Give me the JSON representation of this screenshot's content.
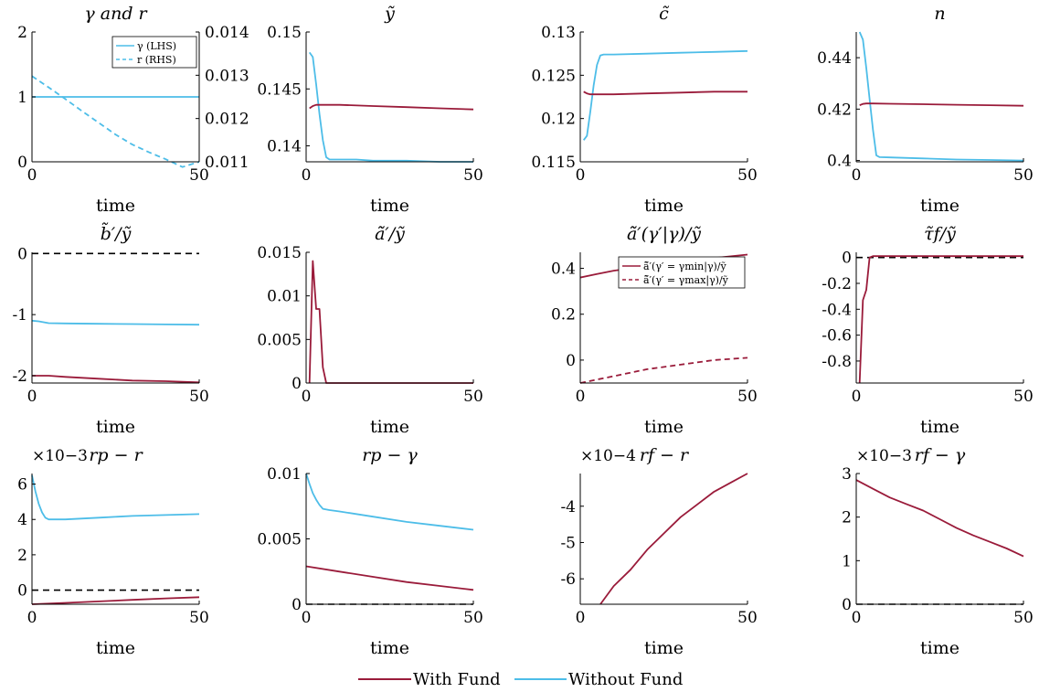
{
  "colors": {
    "with_fund": "#9a1b3a",
    "without_fund": "#4dbde8",
    "zero_line": "#000000"
  },
  "legend": {
    "placement": "bottom-center",
    "with_fund": "With Fund",
    "without_fund": "Without Fund"
  },
  "chart_data": [
    {
      "type": "line",
      "title": "γ and r",
      "xlabel": "time",
      "xlim": [
        0,
        50
      ],
      "xticks": [
        "0",
        "50"
      ],
      "ylim": [
        0,
        2
      ],
      "yticks": [
        "0",
        "1",
        "2"
      ],
      "ylim_right": [
        0.011,
        0.014
      ],
      "yticks_right": [
        "0.011",
        "0.012",
        "0.013",
        "0.014"
      ],
      "legend_placement": "top-right",
      "legend_entries": [
        "γ (LHS)",
        "r (RHS)"
      ],
      "series": [
        {
          "name": "γ (LHS)",
          "color": "without_fund",
          "dash": "solid",
          "axis": "left",
          "x": [
            0,
            50
          ],
          "y": [
            1,
            1
          ]
        },
        {
          "name": "r (RHS)",
          "color": "without_fund",
          "dash": "dashed",
          "axis": "right",
          "x": [
            0,
            5,
            10,
            15,
            20,
            25,
            30,
            35,
            40,
            45,
            50
          ],
          "y": [
            0.01298,
            0.01272,
            0.01245,
            0.01217,
            0.0119,
            0.01163,
            0.0114,
            0.01122,
            0.01106,
            0.01088,
            0.011
          ]
        }
      ]
    },
    {
      "type": "line",
      "title": "ỹ",
      "xlabel": "time",
      "xlim": [
        0,
        50
      ],
      "xticks": [
        "0",
        "50"
      ],
      "ylim": [
        0.1386,
        0.15
      ],
      "yticks": [
        "0.14",
        "0.145",
        "0.15"
      ],
      "series": [
        {
          "key": "without_fund",
          "color": "without_fund",
          "x": [
            1,
            2,
            3,
            4,
            5,
            6,
            7,
            10,
            15,
            20,
            30,
            40,
            50
          ],
          "y": [
            0.1482,
            0.1478,
            0.1454,
            0.1428,
            0.1405,
            0.139,
            0.1388,
            0.1388,
            0.1388,
            0.1387,
            0.1387,
            0.1386,
            0.1386
          ]
        },
        {
          "key": "with_fund",
          "color": "with_fund",
          "x": [
            1,
            2,
            3,
            5,
            10,
            20,
            30,
            40,
            50
          ],
          "y": [
            0.1433,
            0.1435,
            0.1436,
            0.1436,
            0.1436,
            0.1435,
            0.1434,
            0.1433,
            0.1432
          ]
        }
      ]
    },
    {
      "type": "line",
      "title": "c̃",
      "xlabel": "time",
      "xlim": [
        0,
        50
      ],
      "xticks": [
        "0",
        "50"
      ],
      "ylim": [
        0.115,
        0.13
      ],
      "yticks": [
        "0.115",
        "0.12",
        "0.125",
        "0.13"
      ],
      "series": [
        {
          "key": "without_fund",
          "color": "without_fund",
          "x": [
            1,
            2,
            3,
            4,
            5,
            6,
            7,
            10,
            20,
            30,
            40,
            50
          ],
          "y": [
            0.1175,
            0.118,
            0.1208,
            0.1238,
            0.1262,
            0.1273,
            0.1274,
            0.1274,
            0.1275,
            0.1276,
            0.1277,
            0.1278
          ]
        },
        {
          "key": "with_fund",
          "color": "with_fund",
          "x": [
            1,
            2,
            3,
            5,
            10,
            20,
            30,
            40,
            50
          ],
          "y": [
            0.1231,
            0.1229,
            0.1228,
            0.1228,
            0.1228,
            0.1229,
            0.123,
            0.1231,
            0.1231
          ]
        }
      ]
    },
    {
      "type": "line",
      "title": "n",
      "xlabel": "time",
      "xlim": [
        0,
        50
      ],
      "xticks": [
        "0",
        "50"
      ],
      "ylim": [
        0.3995,
        0.45
      ],
      "yticks": [
        "0.4",
        "0.42",
        "0.44"
      ],
      "series": [
        {
          "key": "without_fund",
          "color": "without_fund",
          "x": [
            1,
            2,
            3,
            4,
            5,
            6,
            7,
            10,
            20,
            30,
            40,
            50
          ],
          "y": [
            0.45,
            0.447,
            0.436,
            0.424,
            0.412,
            0.402,
            0.4013,
            0.4012,
            0.4008,
            0.4004,
            0.4002,
            0.4
          ]
        },
        {
          "key": "with_fund",
          "color": "with_fund",
          "x": [
            1,
            2,
            3,
            5,
            10,
            20,
            30,
            40,
            50
          ],
          "y": [
            0.4215,
            0.422,
            0.4222,
            0.4222,
            0.4221,
            0.4219,
            0.4217,
            0.4215,
            0.4213
          ]
        }
      ]
    },
    {
      "type": "line",
      "title": "b̃′/ỹ",
      "xlabel": "time",
      "xlim": [
        0,
        50
      ],
      "xticks": [
        "0",
        "50"
      ],
      "ylim": [
        -2.12,
        0.02
      ],
      "yticks": [
        "-2",
        "-1",
        "0"
      ],
      "zero_line": true,
      "series": [
        {
          "key": "without_fund",
          "color": "without_fund",
          "x": [
            0,
            2,
            5,
            10,
            20,
            30,
            40,
            50
          ],
          "y": [
            -1.1,
            -1.11,
            -1.14,
            -1.145,
            -1.15,
            -1.155,
            -1.16,
            -1.165
          ]
        },
        {
          "key": "with_fund",
          "color": "with_fund",
          "x": [
            0,
            5,
            10,
            20,
            30,
            40,
            50
          ],
          "y": [
            -2.0,
            -2.0,
            -2.02,
            -2.05,
            -2.08,
            -2.09,
            -2.11
          ]
        }
      ]
    },
    {
      "type": "line",
      "title": "ã̃′/ỹ",
      "xlabel": "time",
      "xlim": [
        0,
        50
      ],
      "xticks": [
        "0",
        "50"
      ],
      "ylim": [
        0,
        0.015
      ],
      "yticks": [
        "0",
        "0.005",
        "0.01",
        "0.015"
      ],
      "series": [
        {
          "key": "with_fund",
          "color": "with_fund",
          "x": [
            1,
            2,
            3,
            4,
            5,
            6,
            7,
            10,
            20,
            30,
            40,
            50
          ],
          "y": [
            0,
            0.014,
            0.0085,
            0.0085,
            0.0018,
            0,
            0,
            0,
            0,
            0,
            0,
            0
          ]
        }
      ]
    },
    {
      "type": "line",
      "title": "ã̃′(γ′|γ)/ỹ",
      "xlabel": "time",
      "xlim": [
        0,
        50
      ],
      "xticks": [
        "0",
        "50"
      ],
      "ylim": [
        -0.1,
        0.47
      ],
      "yticks": [
        "0",
        "0.2",
        "0.4"
      ],
      "legend_placement": "top-right",
      "legend_entries": [
        "ã̃′(γ′ = γmin|γ)/ỹ",
        "ã̃′(γ′ = γmax|γ)/ỹ"
      ],
      "series": [
        {
          "name": "ã̃′(γ′ = γmin|γ)/ỹ",
          "color": "with_fund",
          "dash": "solid",
          "x": [
            0,
            5,
            10,
            20,
            30,
            40,
            50
          ],
          "y": [
            0.36,
            0.375,
            0.39,
            0.41,
            0.43,
            0.445,
            0.46
          ]
        },
        {
          "name": "ã̃′(γ′ = γmax|γ)/ỹ",
          "color": "with_fund",
          "dash": "dashed",
          "x": [
            0,
            5,
            10,
            20,
            30,
            40,
            50
          ],
          "y": [
            -0.1,
            -0.085,
            -0.07,
            -0.04,
            -0.02,
            0.0,
            0.01
          ]
        }
      ]
    },
    {
      "type": "line",
      "title": "τ̃f/ỹ",
      "xlabel": "time",
      "xlim": [
        0,
        50
      ],
      "xticks": [
        "0",
        "50"
      ],
      "ylim": [
        -0.97,
        0.04
      ],
      "yticks": [
        "-0.8",
        "-0.6",
        "-0.4",
        "-0.2",
        "0"
      ],
      "zero_line": true,
      "series": [
        {
          "key": "with_fund",
          "color": "with_fund",
          "x": [
            1,
            2,
            3,
            4,
            5,
            10,
            20,
            30,
            40,
            50
          ],
          "y": [
            -0.97,
            -0.33,
            -0.25,
            0.0,
            0.01,
            0.01,
            0.01,
            0.01,
            0.01,
            0.01
          ]
        }
      ]
    },
    {
      "type": "line",
      "title": "rp − r",
      "xlabel": "time",
      "y_multiplier": "×10−3",
      "xlim": [
        0,
        50
      ],
      "xticks": [
        "0",
        "50"
      ],
      "ylim": [
        -0.8,
        6.6
      ],
      "yticks": [
        "0",
        "2",
        "4",
        "6"
      ],
      "zero_line": true,
      "series": [
        {
          "key": "without_fund",
          "color": "without_fund",
          "x": [
            0,
            1,
            2,
            3,
            4,
            5,
            10,
            20,
            30,
            40,
            50
          ],
          "y": [
            6.5,
            5.6,
            4.9,
            4.4,
            4.1,
            4.0,
            4.0,
            4.1,
            4.2,
            4.25,
            4.3
          ]
        },
        {
          "key": "with_fund",
          "color": "with_fund",
          "x": [
            0,
            10,
            20,
            30,
            40,
            50
          ],
          "y": [
            -0.8,
            -0.72,
            -0.64,
            -0.55,
            -0.47,
            -0.4
          ]
        }
      ]
    },
    {
      "type": "line",
      "title": "rp − γ",
      "xlabel": "time",
      "xlim": [
        0,
        50
      ],
      "xticks": [
        "0",
        "50"
      ],
      "ylim": [
        0,
        0.01
      ],
      "yticks": [
        "0",
        "0.005",
        "0.01"
      ],
      "zero_line": true,
      "series": [
        {
          "key": "without_fund",
          "color": "without_fund",
          "x": [
            0,
            1,
            2,
            3,
            4,
            5,
            7,
            10,
            20,
            30,
            40,
            50
          ],
          "y": [
            0.01,
            0.0092,
            0.0085,
            0.008,
            0.0076,
            0.0073,
            0.0072,
            0.0071,
            0.0067,
            0.0063,
            0.006,
            0.0057
          ]
        },
        {
          "key": "with_fund",
          "color": "with_fund",
          "x": [
            0,
            10,
            20,
            30,
            40,
            50
          ],
          "y": [
            0.0029,
            0.0025,
            0.0021,
            0.0017,
            0.0014,
            0.0011
          ]
        }
      ]
    },
    {
      "type": "line",
      "title": "rf − r",
      "xlabel": "time",
      "y_multiplier": "×10−4",
      "xlim": [
        0,
        50
      ],
      "xticks": [
        "0",
        "50"
      ],
      "ylim": [
        -6.7,
        -3.1
      ],
      "yticks": [
        "-6",
        "-5",
        "-4"
      ],
      "series": [
        {
          "key": "with_fund",
          "color": "with_fund",
          "x": [
            6,
            10,
            15,
            20,
            25,
            30,
            35,
            40,
            45,
            50
          ],
          "y": [
            -6.7,
            -6.2,
            -5.75,
            -5.2,
            -4.75,
            -4.3,
            -3.95,
            -3.6,
            -3.35,
            -3.1
          ]
        }
      ]
    },
    {
      "type": "line",
      "title": "rf − γ",
      "xlabel": "time",
      "y_multiplier": "×10−3",
      "xlim": [
        0,
        50
      ],
      "xticks": [
        "0",
        "50"
      ],
      "ylim": [
        0,
        3
      ],
      "yticks": [
        "0",
        "1",
        "2",
        "3"
      ],
      "zero_line": true,
      "series": [
        {
          "key": "with_fund",
          "color": "with_fund",
          "x": [
            0,
            5,
            10,
            15,
            20,
            25,
            30,
            35,
            40,
            45,
            50
          ],
          "y": [
            2.85,
            2.65,
            2.45,
            2.3,
            2.15,
            1.95,
            1.75,
            1.58,
            1.43,
            1.28,
            1.1
          ]
        }
      ]
    }
  ]
}
